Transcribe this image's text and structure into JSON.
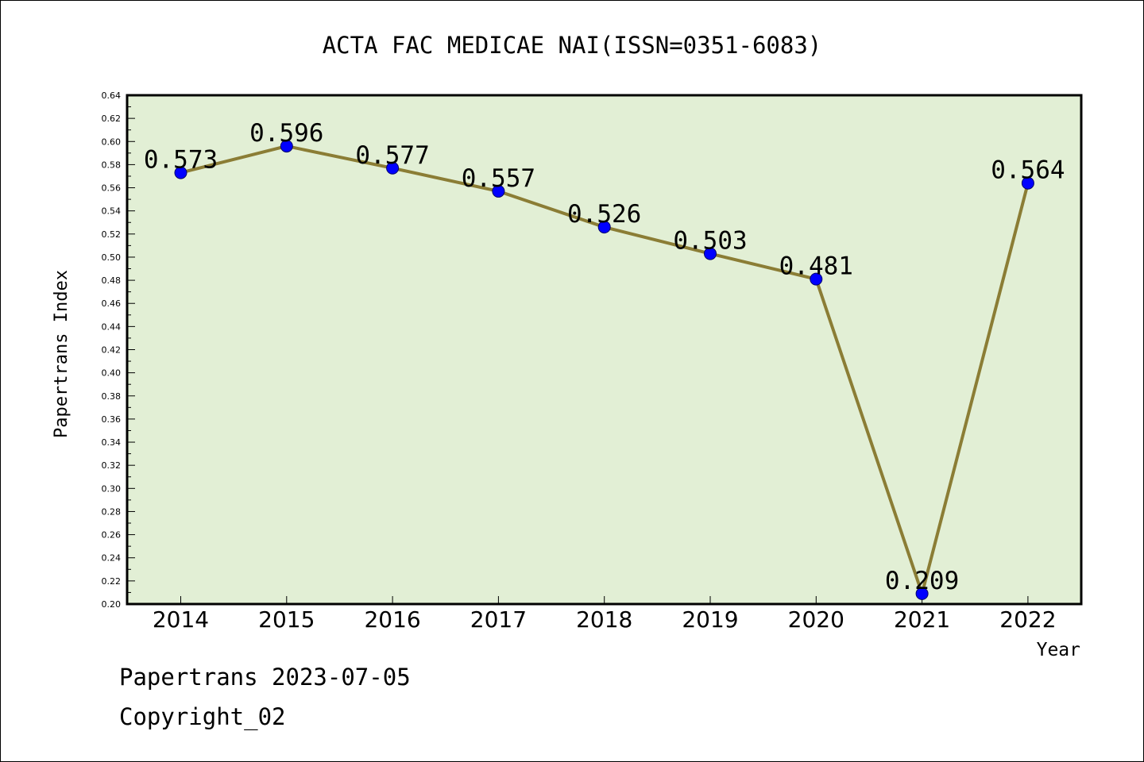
{
  "chart_data": {
    "type": "line",
    "title": "ACTA FAC MEDICAE NAI(ISSN=0351-6083)",
    "xlabel": "Year",
    "ylabel": "Papertrans Index",
    "categories": [
      "2014",
      "2015",
      "2016",
      "2017",
      "2018",
      "2019",
      "2020",
      "2021",
      "2022"
    ],
    "series": [
      {
        "values": [
          0.573,
          0.596,
          0.577,
          0.557,
          0.526,
          0.503,
          0.481,
          0.209,
          0.564
        ]
      }
    ],
    "data_labels": [
      "0.573",
      "0.596",
      "0.577",
      "0.557",
      "0.526",
      "0.503",
      "0.481",
      "0.209",
      "0.564"
    ],
    "ylim": [
      0.2,
      0.64
    ],
    "yticks": [
      "0.20",
      "0.22",
      "0.24",
      "0.26",
      "0.28",
      "0.30",
      "0.32",
      "0.34",
      "0.36",
      "0.38",
      "0.40",
      "0.42",
      "0.44",
      "0.46",
      "0.48",
      "0.50",
      "0.52",
      "0.54",
      "0.56",
      "0.58",
      "0.60",
      "0.62",
      "0.64"
    ],
    "grid": false,
    "legend": "none",
    "colors": {
      "plot_background": "#e2efd5",
      "line": "#8b7d35",
      "marker": "#0000ff",
      "axis": "#000000"
    }
  },
  "footer": {
    "date_text": "Papertrans 2023-07-05",
    "copyright_text": "Copyright_02"
  }
}
